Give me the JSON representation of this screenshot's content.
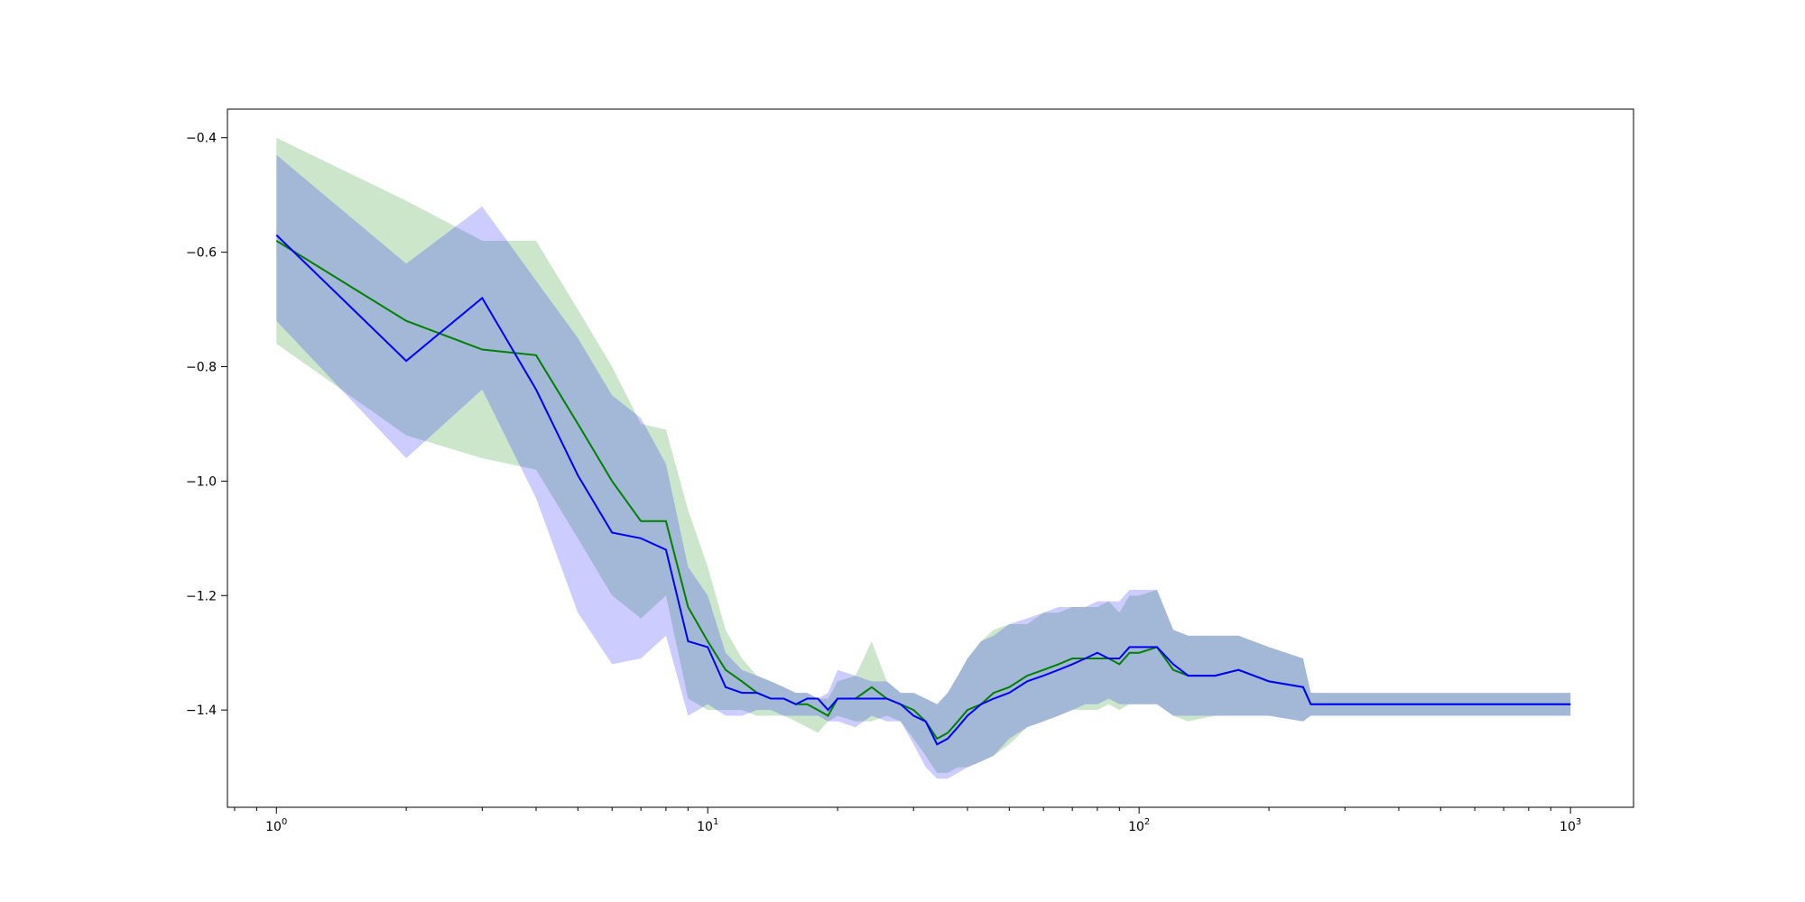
{
  "chart_data": {
    "type": "line",
    "title": "",
    "xlabel": "",
    "ylabel": "",
    "xscale": "log",
    "xlim": [
      0.77,
      1400
    ],
    "ylim": [
      -1.57,
      -0.35
    ],
    "grid": false,
    "legend": "none",
    "x_ticks": [
      {
        "value": 1,
        "base": "10",
        "exp": "0"
      },
      {
        "value": 10,
        "base": "10",
        "exp": "1"
      },
      {
        "value": 100,
        "base": "10",
        "exp": "2"
      },
      {
        "value": 1000,
        "base": "10",
        "exp": "3"
      }
    ],
    "y_ticks": [
      {
        "value": -0.4,
        "label": "−0.4"
      },
      {
        "value": -0.6,
        "label": "−0.6"
      },
      {
        "value": -0.8,
        "label": "−0.8"
      },
      {
        "value": -1.0,
        "label": "−1.0"
      },
      {
        "value": -1.2,
        "label": "−1.2"
      },
      {
        "value": -1.4,
        "label": "−1.4"
      }
    ],
    "series": [
      {
        "color": "#008000",
        "band_color": "#008000",
        "x": [
          1,
          2,
          3,
          4,
          5,
          6,
          7,
          8,
          9,
          10,
          11,
          12,
          13,
          14,
          15,
          16,
          17,
          18,
          19,
          20,
          22,
          24,
          26,
          28,
          30,
          32,
          34,
          36,
          38,
          40,
          43,
          46,
          50,
          55,
          60,
          65,
          70,
          75,
          80,
          85,
          90,
          95,
          100,
          110,
          120,
          130,
          150,
          170,
          200,
          240,
          250,
          260,
          300,
          350,
          400,
          500,
          600,
          700,
          800,
          900,
          1000
        ],
        "y": [
          -0.58,
          -0.72,
          -0.77,
          -0.78,
          -0.9,
          -1.0,
          -1.07,
          -1.07,
          -1.22,
          -1.28,
          -1.33,
          -1.35,
          -1.37,
          -1.38,
          -1.38,
          -1.39,
          -1.39,
          -1.4,
          -1.41,
          -1.38,
          -1.38,
          -1.36,
          -1.38,
          -1.39,
          -1.4,
          -1.42,
          -1.45,
          -1.44,
          -1.42,
          -1.4,
          -1.39,
          -1.37,
          -1.36,
          -1.34,
          -1.33,
          -1.32,
          -1.31,
          -1.31,
          -1.31,
          -1.31,
          -1.32,
          -1.3,
          -1.3,
          -1.29,
          -1.33,
          -1.34,
          -1.34,
          -1.33,
          -1.35,
          -1.36,
          -1.39,
          -1.39,
          -1.39,
          -1.39,
          -1.39,
          -1.39,
          -1.39,
          -1.39,
          -1.39,
          -1.39,
          -1.39
        ],
        "lower": [
          -0.76,
          -0.92,
          -0.96,
          -0.98,
          -1.1,
          -1.2,
          -1.24,
          -1.2,
          -1.38,
          -1.4,
          -1.4,
          -1.4,
          -1.41,
          -1.41,
          -1.41,
          -1.42,
          -1.43,
          -1.44,
          -1.42,
          -1.41,
          -1.42,
          -1.42,
          -1.41,
          -1.42,
          -1.45,
          -1.48,
          -1.51,
          -1.51,
          -1.5,
          -1.5,
          -1.49,
          -1.48,
          -1.46,
          -1.43,
          -1.42,
          -1.41,
          -1.4,
          -1.4,
          -1.4,
          -1.39,
          -1.4,
          -1.39,
          -1.39,
          -1.39,
          -1.41,
          -1.42,
          -1.41,
          -1.41,
          -1.41,
          -1.42,
          -1.41,
          -1.41,
          -1.41,
          -1.41,
          -1.41,
          -1.41,
          -1.41,
          -1.41,
          -1.41,
          -1.41,
          -1.41
        ],
        "upper": [
          -0.4,
          -0.51,
          -0.58,
          -0.58,
          -0.7,
          -0.8,
          -0.9,
          -0.91,
          -1.05,
          -1.15,
          -1.26,
          -1.31,
          -1.34,
          -1.35,
          -1.36,
          -1.37,
          -1.37,
          -1.38,
          -1.38,
          -1.35,
          -1.34,
          -1.28,
          -1.35,
          -1.37,
          -1.37,
          -1.38,
          -1.39,
          -1.37,
          -1.34,
          -1.31,
          -1.28,
          -1.26,
          -1.25,
          -1.25,
          -1.23,
          -1.23,
          -1.22,
          -1.22,
          -1.22,
          -1.21,
          -1.23,
          -1.2,
          -1.2,
          -1.19,
          -1.26,
          -1.27,
          -1.27,
          -1.27,
          -1.29,
          -1.31,
          -1.37,
          -1.37,
          -1.37,
          -1.37,
          -1.37,
          -1.37,
          -1.37,
          -1.37,
          -1.37,
          -1.37,
          -1.37
        ]
      },
      {
        "color": "#0000ff",
        "band_color": "#0000ff",
        "x": [
          1,
          2,
          3,
          4,
          5,
          6,
          7,
          8,
          9,
          10,
          11,
          12,
          13,
          14,
          15,
          16,
          17,
          18,
          19,
          20,
          22,
          24,
          26,
          28,
          30,
          32,
          34,
          36,
          38,
          40,
          43,
          46,
          50,
          55,
          60,
          65,
          70,
          75,
          80,
          85,
          90,
          95,
          100,
          110,
          120,
          130,
          150,
          170,
          200,
          240,
          250,
          260,
          300,
          350,
          400,
          500,
          600,
          700,
          800,
          900,
          1000
        ],
        "y": [
          -0.57,
          -0.79,
          -0.68,
          -0.84,
          -0.99,
          -1.09,
          -1.1,
          -1.12,
          -1.28,
          -1.29,
          -1.36,
          -1.37,
          -1.37,
          -1.38,
          -1.38,
          -1.39,
          -1.38,
          -1.38,
          -1.4,
          -1.38,
          -1.38,
          -1.38,
          -1.38,
          -1.39,
          -1.41,
          -1.42,
          -1.46,
          -1.45,
          -1.43,
          -1.41,
          -1.39,
          -1.38,
          -1.37,
          -1.35,
          -1.34,
          -1.33,
          -1.32,
          -1.31,
          -1.3,
          -1.31,
          -1.31,
          -1.29,
          -1.29,
          -1.29,
          -1.32,
          -1.34,
          -1.34,
          -1.33,
          -1.35,
          -1.36,
          -1.39,
          -1.39,
          -1.39,
          -1.39,
          -1.39,
          -1.39,
          -1.39,
          -1.39,
          -1.39,
          -1.39,
          -1.39
        ],
        "lower": [
          -0.72,
          -0.96,
          -0.84,
          -1.03,
          -1.23,
          -1.32,
          -1.31,
          -1.27,
          -1.41,
          -1.39,
          -1.41,
          -1.41,
          -1.4,
          -1.4,
          -1.41,
          -1.41,
          -1.41,
          -1.41,
          -1.42,
          -1.42,
          -1.43,
          -1.41,
          -1.42,
          -1.42,
          -1.46,
          -1.5,
          -1.52,
          -1.52,
          -1.51,
          -1.5,
          -1.49,
          -1.48,
          -1.45,
          -1.43,
          -1.42,
          -1.41,
          -1.4,
          -1.39,
          -1.39,
          -1.38,
          -1.39,
          -1.39,
          -1.39,
          -1.39,
          -1.41,
          -1.41,
          -1.41,
          -1.41,
          -1.41,
          -1.42,
          -1.41,
          -1.41,
          -1.41,
          -1.41,
          -1.41,
          -1.41,
          -1.41,
          -1.41,
          -1.41,
          -1.41,
          -1.41
        ],
        "upper": [
          -0.43,
          -0.62,
          -0.52,
          -0.65,
          -0.75,
          -0.85,
          -0.89,
          -0.97,
          -1.15,
          -1.2,
          -1.3,
          -1.33,
          -1.34,
          -1.35,
          -1.36,
          -1.37,
          -1.37,
          -1.38,
          -1.37,
          -1.33,
          -1.34,
          -1.35,
          -1.35,
          -1.37,
          -1.37,
          -1.38,
          -1.39,
          -1.37,
          -1.34,
          -1.31,
          -1.28,
          -1.27,
          -1.25,
          -1.24,
          -1.23,
          -1.22,
          -1.22,
          -1.22,
          -1.21,
          -1.21,
          -1.21,
          -1.19,
          -1.19,
          -1.19,
          -1.26,
          -1.27,
          -1.27,
          -1.27,
          -1.29,
          -1.31,
          -1.37,
          -1.37,
          -1.37,
          -1.37,
          -1.37,
          -1.37,
          -1.37,
          -1.37,
          -1.37,
          -1.37,
          -1.37
        ]
      }
    ]
  }
}
